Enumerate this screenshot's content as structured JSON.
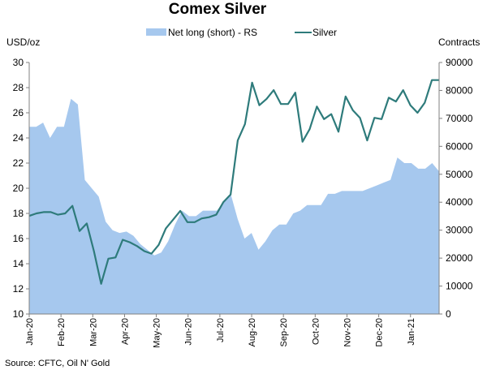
{
  "chart_data": {
    "type": "area+line",
    "title": "Comex Silver",
    "left_unit": "USD/oz",
    "right_unit": "Contracts",
    "source": "Source: CFTC, Oil N' Gold",
    "legend": [
      {
        "label": "Net long (short) - RS",
        "kind": "area",
        "color": "#a6c8ee"
      },
      {
        "label": "Silver",
        "kind": "line",
        "color": "#2e7b7b"
      }
    ],
    "y_left": {
      "min": 10,
      "max": 30,
      "step": 2,
      "ticks": [
        "10",
        "12",
        "14",
        "16",
        "18",
        "20",
        "22",
        "24",
        "26",
        "28",
        "30"
      ]
    },
    "y_right": {
      "min": 0,
      "max": 90000,
      "step": 10000,
      "ticks": [
        "0",
        "10000",
        "20000",
        "30000",
        "40000",
        "50000",
        "60000",
        "70000",
        "80000",
        "90000"
      ]
    },
    "x_labels": [
      "Jan-20",
      "Feb-20",
      "Mar-20",
      "Apr-20",
      "May-20",
      "Jun-20",
      "Jul-20",
      "Aug-20",
      "Sep-20",
      "Oct-20",
      "Nov-20",
      "Dec-20",
      "Jan-21"
    ],
    "series": [
      {
        "name": "Net long (short) - RS",
        "axis": "right",
        "values": [
          67000,
          67000,
          68500,
          63000,
          67000,
          67000,
          77000,
          75000,
          48000,
          45000,
          42000,
          33000,
          30000,
          29000,
          29500,
          28000,
          25000,
          23000,
          21000,
          22000,
          26000,
          32000,
          37000,
          35000,
          35000,
          37000,
          37000,
          37000,
          40000,
          43000,
          34000,
          27000,
          29000,
          23000,
          26000,
          30000,
          32000,
          32000,
          36000,
          37000,
          39000,
          39000,
          39000,
          43000,
          43000,
          44000,
          44000,
          44000,
          44000,
          45000,
          46000,
          47000,
          48000,
          56000,
          54000,
          54000,
          52000,
          52000,
          54000,
          51000
        ]
      },
      {
        "name": "Silver",
        "axis": "left",
        "values": [
          17.8,
          18.0,
          18.1,
          18.1,
          17.9,
          18.0,
          18.6,
          16.6,
          17.2,
          15.0,
          12.4,
          14.4,
          14.5,
          15.9,
          15.7,
          15.4,
          15.0,
          14.8,
          15.5,
          16.8,
          17.5,
          18.2,
          17.3,
          17.3,
          17.6,
          17.7,
          17.9,
          18.9,
          19.5,
          23.8,
          25.1,
          28.4,
          26.6,
          27.1,
          27.8,
          26.7,
          26.7,
          27.6,
          23.7,
          24.7,
          26.5,
          25.5,
          25.9,
          24.5,
          27.3,
          26.2,
          25.6,
          23.8,
          25.6,
          25.5,
          27.2,
          26.9,
          27.8,
          26.6,
          26.0,
          26.8,
          28.6,
          28.6
        ]
      }
    ],
    "colors": {
      "area": "#a6c8ee",
      "line": "#2e7b7b",
      "axis": "#808080"
    }
  }
}
